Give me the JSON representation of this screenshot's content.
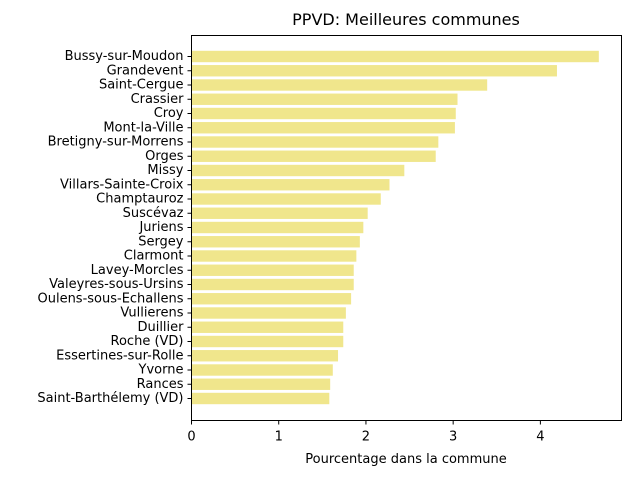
{
  "chart_data": {
    "type": "bar",
    "orientation": "horizontal",
    "title": "PPVD: Meilleures communes",
    "xlabel": "Pourcentage dans la commune",
    "ylabel": "",
    "xlim": [
      0,
      4.93
    ],
    "xticks": [
      0,
      1,
      2,
      3,
      4
    ],
    "grid": false,
    "bar_color": "#f0e68c",
    "categories": [
      "Bussy-sur-Moudon",
      "Grandevent",
      "Saint-Cergue",
      "Crassier",
      "Croy",
      "Mont-la-Ville",
      "Bretigny-sur-Morrens",
      "Orges",
      "Missy",
      "Villars-Sainte-Croix",
      "Champtauroz",
      "Suscévaz",
      "Juriens",
      "Sergey",
      "Clarmont",
      "Lavey-Morcles",
      "Valeyres-sous-Ursins",
      "Oulens-sous-Echallens",
      "Vullierens",
      "Duillier",
      "Roche (VD)",
      "Essertines-sur-Rolle",
      "Yvorne",
      "Rances",
      "Saint-Barthélemy (VD)"
    ],
    "values": [
      4.67,
      4.19,
      3.39,
      3.05,
      3.03,
      3.02,
      2.83,
      2.8,
      2.44,
      2.27,
      2.17,
      2.02,
      1.97,
      1.93,
      1.89,
      1.86,
      1.86,
      1.83,
      1.77,
      1.74,
      1.74,
      1.68,
      1.62,
      1.59,
      1.58
    ]
  }
}
